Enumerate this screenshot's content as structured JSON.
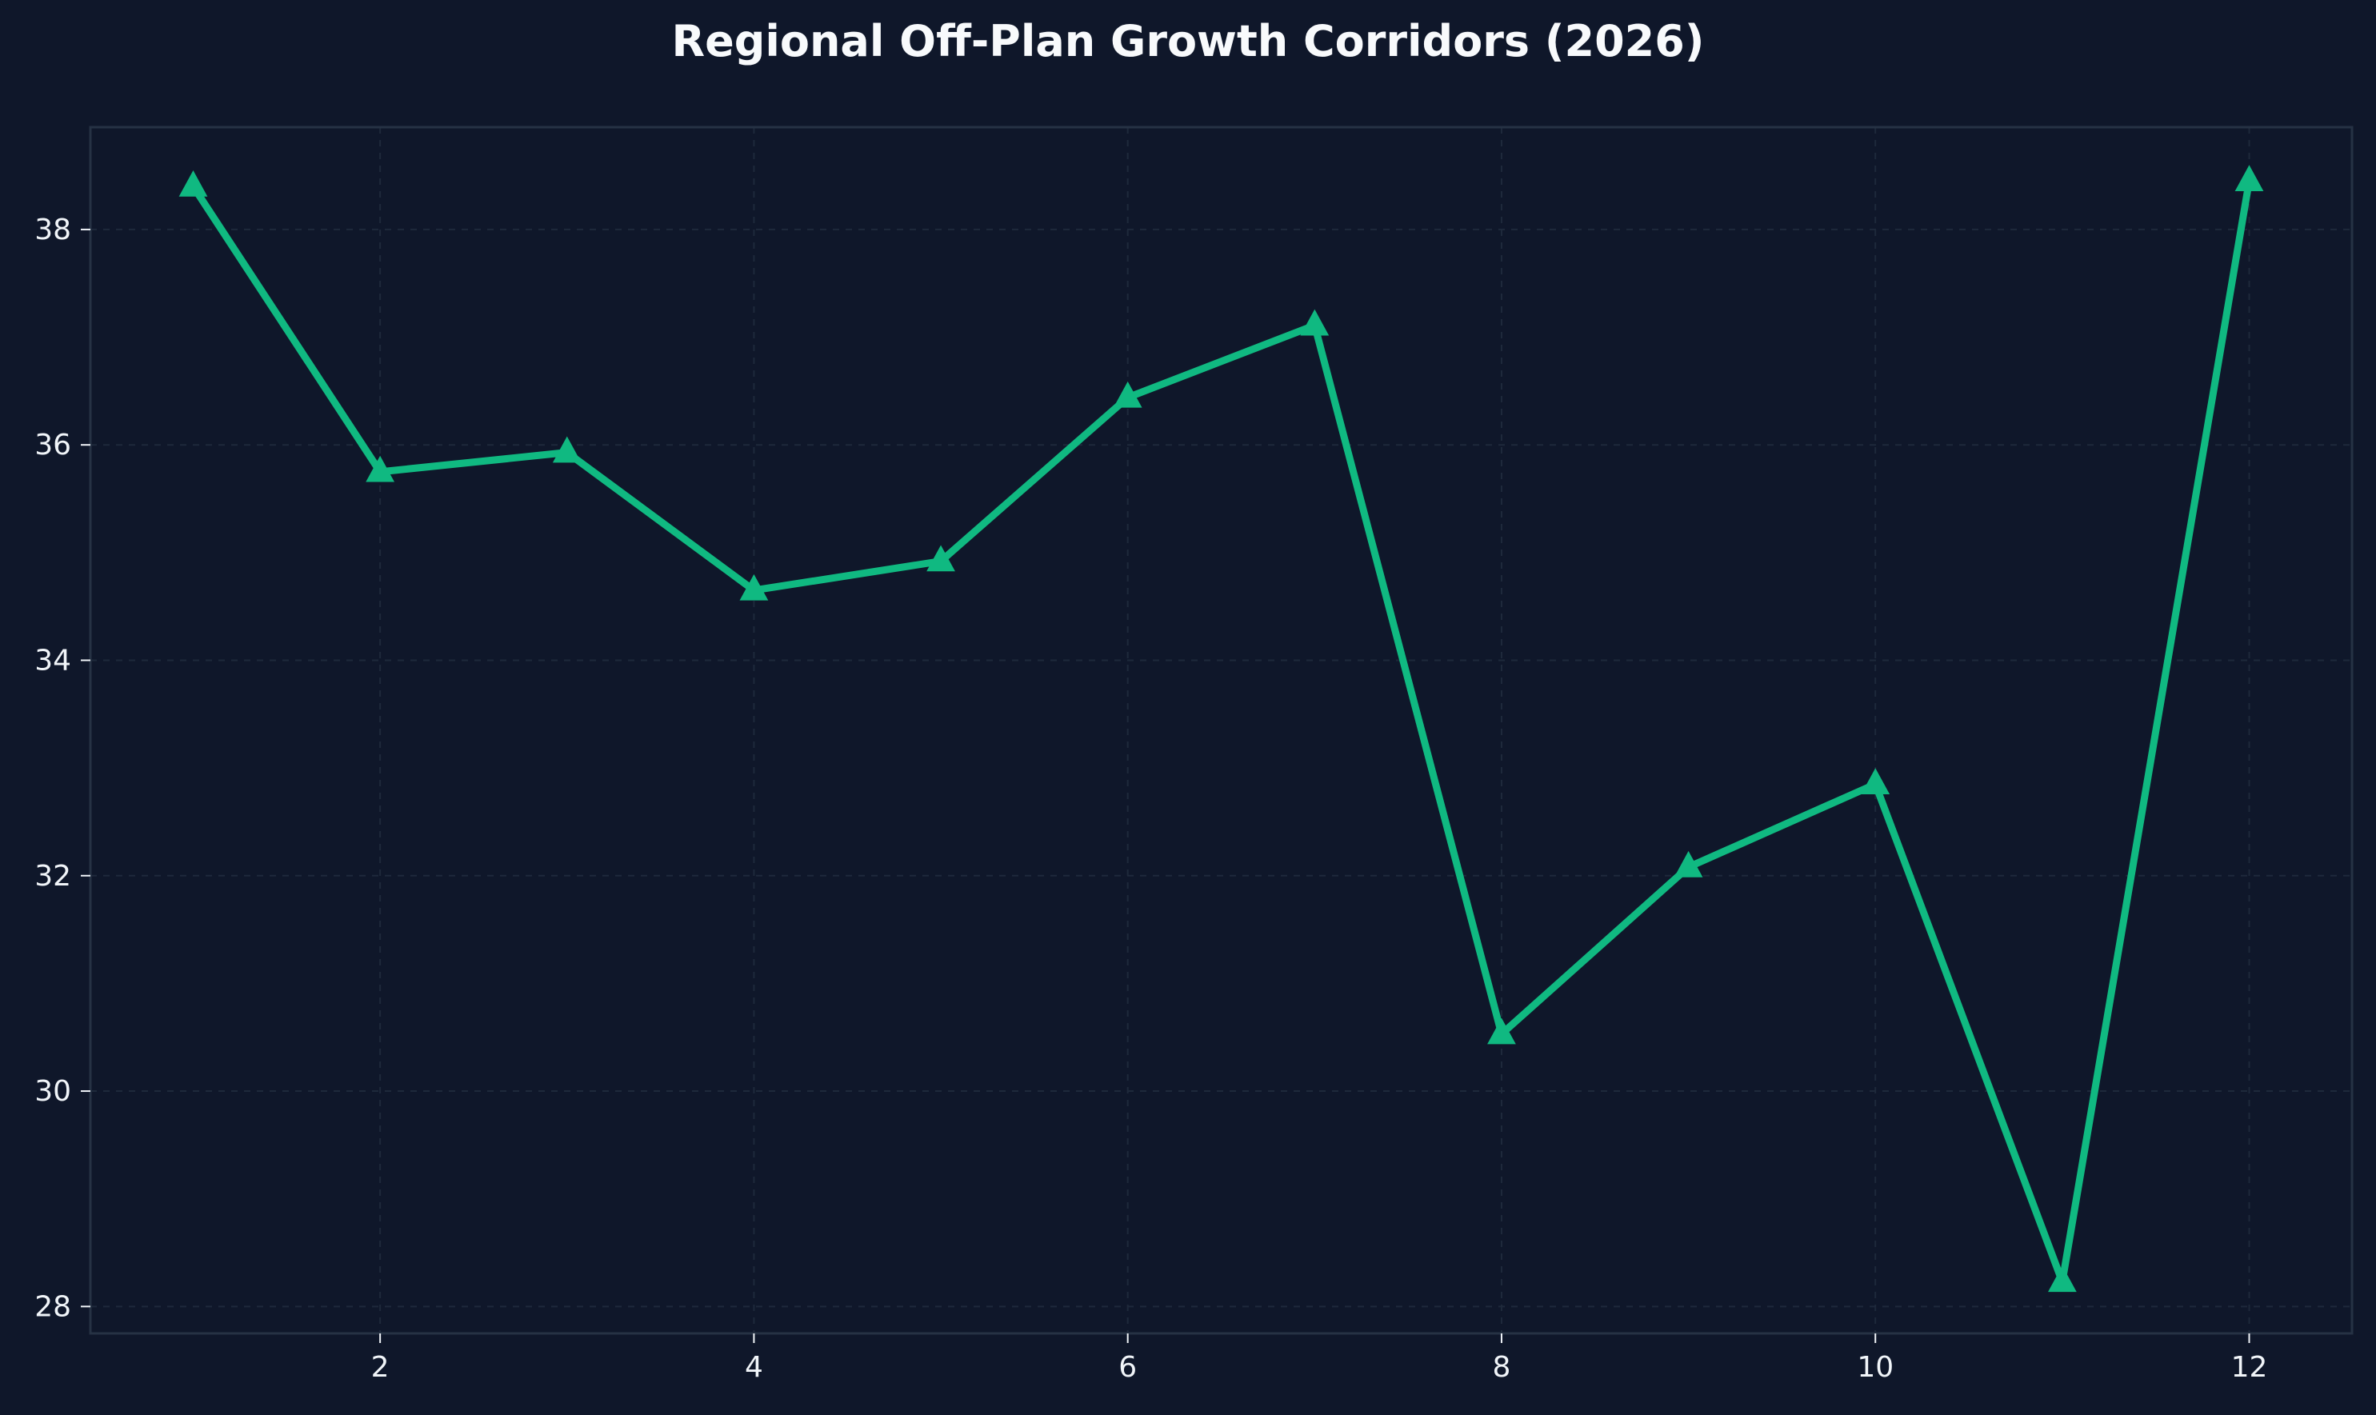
{
  "chart_data": {
    "type": "line",
    "title": "Regional Off-Plan Growth Corridors (2026)",
    "xlabel": "",
    "ylabel": "",
    "x": [
      1,
      2,
      3,
      4,
      5,
      6,
      7,
      8,
      9,
      10,
      11,
      12
    ],
    "series": [
      {
        "values": [
          38.4,
          35.75,
          35.93,
          34.65,
          34.92,
          36.44,
          37.11,
          30.53,
          32.08,
          32.85,
          28.23,
          38.45
        ]
      }
    ],
    "xlim": [
      0.45,
      12.55
    ],
    "ylim": [
      27.75,
      38.95
    ],
    "xticks": [
      2,
      4,
      6,
      8,
      10,
      12
    ],
    "yticks": [
      28,
      30,
      32,
      34,
      36,
      38
    ],
    "xtick_labels": [
      "2",
      "4",
      "6",
      "8",
      "10",
      "12"
    ],
    "ytick_labels": [
      "28",
      "30",
      "32",
      "34",
      "36",
      "38"
    ],
    "grid": true,
    "legend": "none",
    "marker": "triangle-up"
  },
  "colors": {
    "background": "#0f172a",
    "line": "#10b981",
    "grid": "#1e293b",
    "spine": "#263244",
    "text": "#f1f5f9"
  }
}
